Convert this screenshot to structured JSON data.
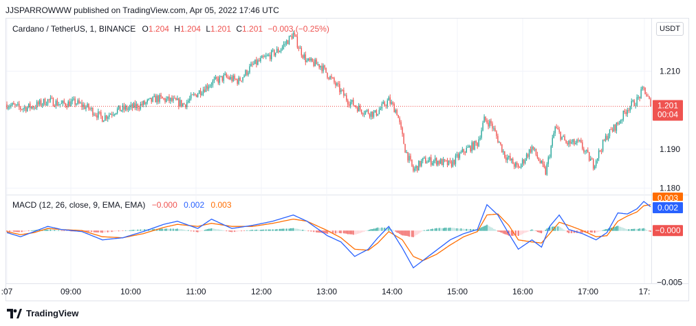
{
  "header": {
    "published": "JJSPARROWWW published on TradingView.com, Apr 05, 2022 17:46 UTC"
  },
  "legend": {
    "symbol": "Cardano / TetherUS, 1, BINANCE",
    "o_label": "O",
    "o": "1.204",
    "h_label": "H",
    "h": "1.204",
    "l_label": "L",
    "l": "1.201",
    "c_label": "C",
    "c": "1.201",
    "change": "−0.003 (−0.25%)"
  },
  "currency": "USDT",
  "macd_legend": {
    "title": "MACD (12, 26, close, 9, EMA, EMA)",
    "hist": "−0.000",
    "macd": "0.002",
    "signal": "0.003"
  },
  "price_badge": {
    "price": "1.201",
    "countdown": "00:04"
  },
  "macd_badges": {
    "signal": "0.003",
    "macd": "0.002",
    "hist": "−0.000"
  },
  "footer": {
    "brand": "TradingView"
  },
  "colors": {
    "up": "#26a69a",
    "down": "#ef5350",
    "macd": "#2962ff",
    "signal": "#ff6d00",
    "grid": "#f0f3fa"
  },
  "chart_data": [
    {
      "type": "candlestick",
      "title": "Cardano / TetherUS, 1, BINANCE",
      "y_ticks": [
        1.18,
        1.19,
        1.21
      ],
      "y_tick_labels": [
        "1.180",
        "1.190",
        "1.210"
      ],
      "ylim": [
        1.1785,
        1.2235
      ],
      "x_tick_labels": [
        ":07",
        "09:00",
        "10:00",
        "11:00",
        "12:00",
        "13:00",
        "14:00",
        "15:00",
        "16:00",
        "17:00",
        "17:"
      ],
      "last_price": 1.201,
      "anchors": [
        [
          0,
          1.2015
        ],
        [
          10,
          1.2005
        ],
        [
          20,
          1.201
        ],
        [
          30,
          1.2025
        ],
        [
          40,
          1.2015
        ],
        [
          50,
          1.202
        ],
        [
          60,
          1.2005
        ],
        [
          70,
          1.198
        ],
        [
          80,
          1.2
        ],
        [
          90,
          1.2005
        ],
        [
          100,
          1.2015
        ],
        [
          110,
          1.203
        ],
        [
          120,
          1.2025
        ],
        [
          130,
          1.2015
        ],
        [
          140,
          1.2045
        ],
        [
          150,
          1.207
        ],
        [
          160,
          1.2085
        ],
        [
          170,
          1.2075
        ],
        [
          180,
          1.2115
        ],
        [
          190,
          1.2135
        ],
        [
          200,
          1.2155
        ],
        [
          210,
          1.2195
        ],
        [
          215,
          1.2155
        ],
        [
          220,
          1.2125
        ],
        [
          230,
          1.2115
        ],
        [
          240,
          1.207
        ],
        [
          250,
          1.2025
        ],
        [
          260,
          1.2
        ],
        [
          270,
          1.199
        ],
        [
          280,
          1.2025
        ],
        [
          286,
          1.1995
        ],
        [
          292,
          1.19
        ],
        [
          298,
          1.1845
        ],
        [
          305,
          1.187
        ],
        [
          315,
          1.187
        ],
        [
          325,
          1.186
        ],
        [
          335,
          1.1895
        ],
        [
          345,
          1.1915
        ],
        [
          350,
          1.1975
        ],
        [
          355,
          1.1965
        ],
        [
          365,
          1.1885
        ],
        [
          375,
          1.185
        ],
        [
          385,
          1.1905
        ],
        [
          395,
          1.184
        ],
        [
          402,
          1.1955
        ],
        [
          410,
          1.1915
        ],
        [
          420,
          1.1915
        ],
        [
          430,
          1.186
        ],
        [
          440,
          1.1935
        ],
        [
          448,
          1.1965
        ],
        [
          455,
          1.2005
        ],
        [
          462,
          1.2025
        ],
        [
          467,
          1.2055
        ],
        [
          472,
          1.2015
        ]
      ],
      "n_candles": 473
    },
    {
      "type": "line",
      "title": "MACD (12, 26, close, 9, EMA, EMA)",
      "y_tick_labels": [
        "−0.005"
      ],
      "ylim": [
        -0.0051,
        0.0034
      ],
      "series": [
        {
          "name": "MACD",
          "points": [
            [
              0,
              -0.0002
            ],
            [
              10,
              -0.0006
            ],
            [
              20,
              -0.0001
            ],
            [
              30,
              0.0004
            ],
            [
              40,
              0.0001
            ],
            [
              55,
              -0.0001
            ],
            [
              70,
              -0.0009
            ],
            [
              85,
              -0.0007
            ],
            [
              100,
              -0.0001
            ],
            [
              115,
              0.0006
            ],
            [
              125,
              0.0009
            ],
            [
              140,
              0.0002
            ],
            [
              150,
              0.0011
            ],
            [
              165,
              0.0002
            ],
            [
              180,
              0.0005
            ],
            [
              195,
              0.0009
            ],
            [
              210,
              0.0015
            ],
            [
              220,
              0.0009
            ],
            [
              235,
              -0.0005
            ],
            [
              245,
              -0.0011
            ],
            [
              255,
              -0.0025
            ],
            [
              265,
              -0.0018
            ],
            [
              272,
              -0.0007
            ],
            [
              280,
              0.0004
            ],
            [
              290,
              -0.0017
            ],
            [
              298,
              -0.0036
            ],
            [
              305,
              -0.0029
            ],
            [
              315,
              -0.0019
            ],
            [
              325,
              -0.0009
            ],
            [
              335,
              -0.0003
            ],
            [
              345,
              0.0001
            ],
            [
              352,
              0.0025
            ],
            [
              360,
              0.0015
            ],
            [
              368,
              -0.0003
            ],
            [
              375,
              -0.0018
            ],
            [
              385,
              -0.0009
            ],
            [
              392,
              -0.0016
            ],
            [
              398,
              0.0004
            ],
            [
              405,
              0.0015
            ],
            [
              412,
              0.0001
            ],
            [
              422,
              -0.0003
            ],
            [
              432,
              -0.0009
            ],
            [
              440,
              -0.0002
            ],
            [
              448,
              0.0017
            ],
            [
              455,
              0.0016
            ],
            [
              462,
              0.0021
            ],
            [
              467,
              0.0028
            ],
            [
              472,
              0.0023
            ]
          ]
        },
        {
          "name": "Signal",
          "points": [
            [
              0,
              -0.0001
            ],
            [
              10,
              -0.0004
            ],
            [
              20,
              -0.0002
            ],
            [
              30,
              0.0002
            ],
            [
              40,
              0.0001
            ],
            [
              55,
              0.0
            ],
            [
              70,
              -0.0006
            ],
            [
              85,
              -0.0007
            ],
            [
              100,
              -0.0003
            ],
            [
              115,
              0.0003
            ],
            [
              125,
              0.0006
            ],
            [
              140,
              0.0004
            ],
            [
              150,
              0.0007
            ],
            [
              165,
              0.0004
            ],
            [
              180,
              0.0004
            ],
            [
              195,
              0.0007
            ],
            [
              210,
              0.0011
            ],
            [
              220,
              0.0009
            ],
            [
              235,
              0.0
            ],
            [
              245,
              -0.0007
            ],
            [
              255,
              -0.0018
            ],
            [
              265,
              -0.0019
            ],
            [
              272,
              -0.0012
            ],
            [
              280,
              -0.0001
            ],
            [
              290,
              -0.0009
            ],
            [
              298,
              -0.0025
            ],
            [
              305,
              -0.0029
            ],
            [
              315,
              -0.0023
            ],
            [
              325,
              -0.0014
            ],
            [
              335,
              -0.0006
            ],
            [
              345,
              -0.0001
            ],
            [
              352,
              0.0015
            ],
            [
              360,
              0.0016
            ],
            [
              368,
              0.0005
            ],
            [
              375,
              -0.0009
            ],
            [
              385,
              -0.0011
            ],
            [
              392,
              -0.0012
            ],
            [
              398,
              -0.0003
            ],
            [
              405,
              0.0008
            ],
            [
              412,
              0.0005
            ],
            [
              422,
              0.0
            ],
            [
              432,
              -0.0006
            ],
            [
              440,
              -0.0005
            ],
            [
              448,
              0.0009
            ],
            [
              455,
              0.0014
            ],
            [
              462,
              0.0018
            ],
            [
              467,
              0.0024
            ],
            [
              472,
              0.0025
            ]
          ]
        }
      ]
    }
  ]
}
